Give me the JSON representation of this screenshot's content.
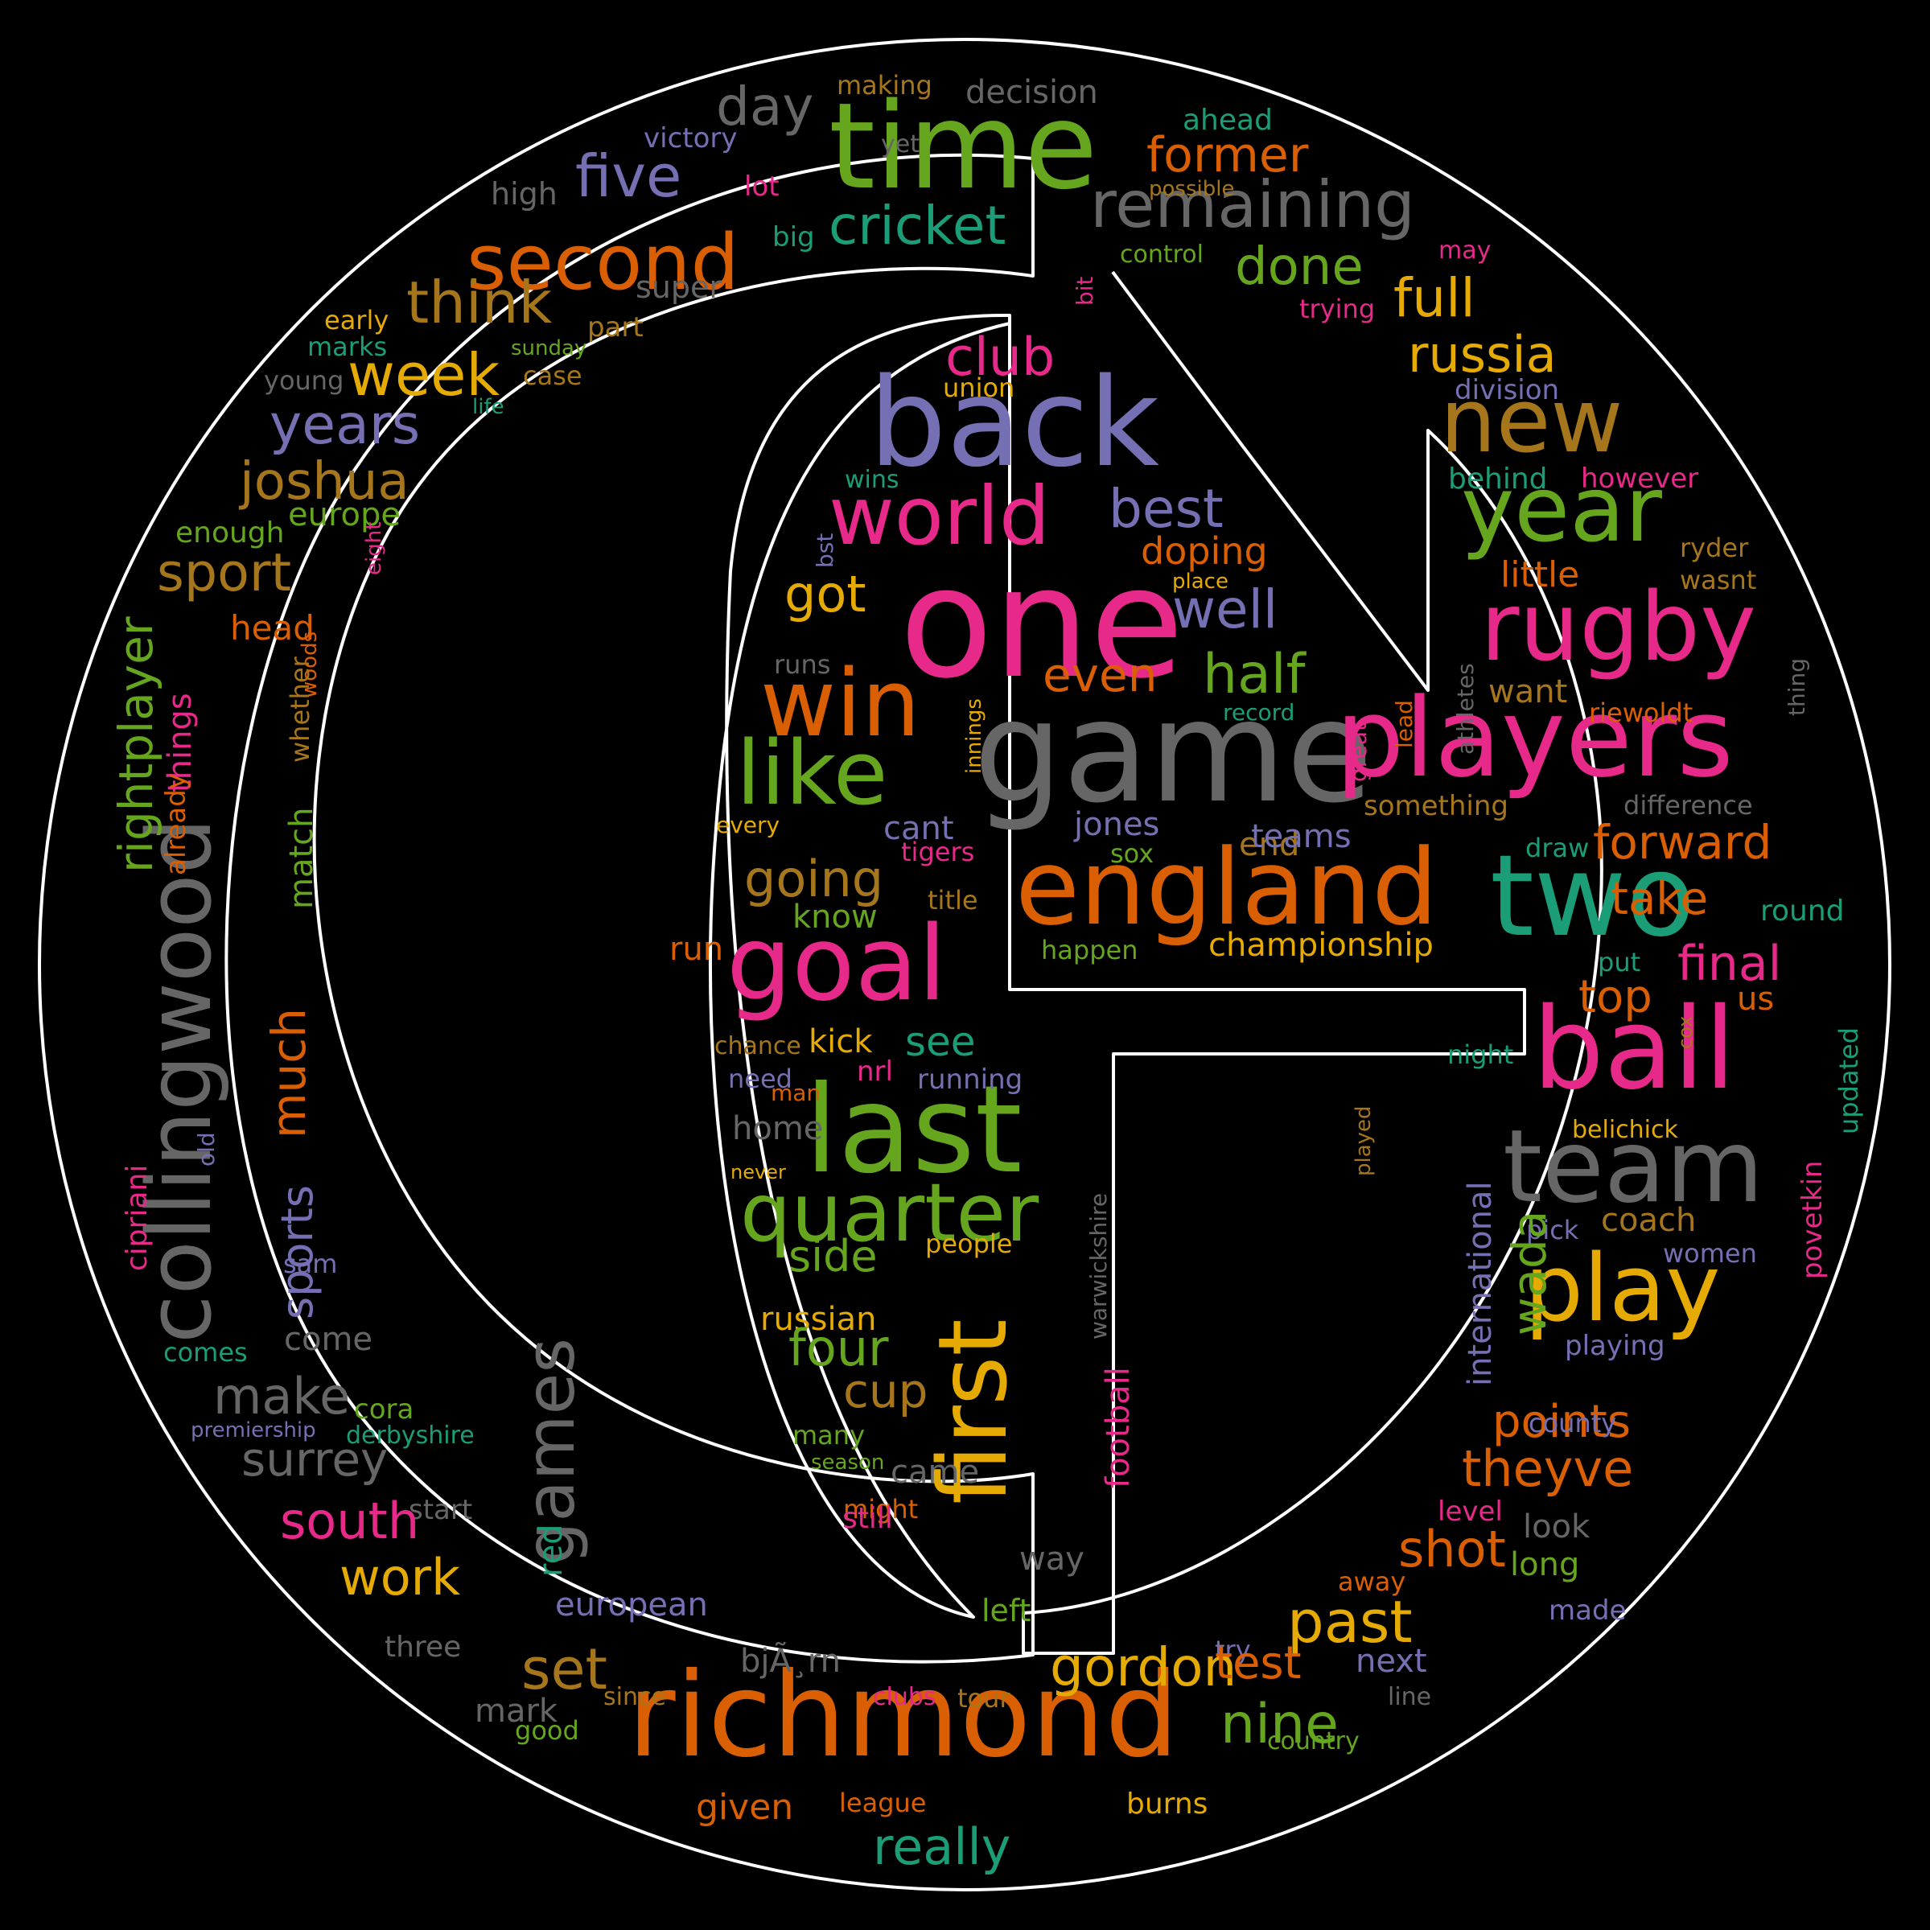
{
  "wordcloud": {
    "colors": {
      "background": "#000000",
      "outline": "#ffffff",
      "green": "#66a61e",
      "pink": "#e7298a",
      "orange": "#d95f02",
      "teal": "#1b9e77",
      "purple": "#7570b3",
      "yellow": "#e6ab02",
      "brown": "#a6761d",
      "grey": "#666666"
    },
    "words": [
      {
        "text": "time",
        "color": "green"
      },
      {
        "text": "back",
        "color": "purple"
      },
      {
        "text": "one",
        "color": "pink"
      },
      {
        "text": "game",
        "color": "grey"
      },
      {
        "text": "players",
        "color": "pink"
      },
      {
        "text": "england",
        "color": "orange"
      },
      {
        "text": "two",
        "color": "teal"
      },
      {
        "text": "richmond",
        "color": "orange"
      },
      {
        "text": "collingwood",
        "color": "grey"
      },
      {
        "text": "last",
        "color": "green"
      },
      {
        "text": "ball",
        "color": "pink"
      },
      {
        "text": "team",
        "color": "grey"
      },
      {
        "text": "goal",
        "color": "pink"
      },
      {
        "text": "win",
        "color": "orange"
      },
      {
        "text": "rugby",
        "color": "pink"
      },
      {
        "text": "year",
        "color": "green"
      },
      {
        "text": "new",
        "color": "brown"
      },
      {
        "text": "first",
        "color": "yellow"
      },
      {
        "text": "play",
        "color": "yellow"
      },
      {
        "text": "quarter",
        "color": "green"
      },
      {
        "text": "world",
        "color": "pink"
      },
      {
        "text": "like",
        "color": "green"
      },
      {
        "text": "second",
        "color": "orange"
      },
      {
        "text": "remaining",
        "color": "grey"
      },
      {
        "text": "five",
        "color": "purple"
      },
      {
        "text": "cricket",
        "color": "teal"
      },
      {
        "text": "former",
        "color": "orange"
      },
      {
        "text": "day",
        "color": "grey"
      },
      {
        "text": "decision",
        "color": "grey"
      },
      {
        "text": "making",
        "color": "brown"
      },
      {
        "text": "victory",
        "color": "purple"
      },
      {
        "text": "ahead",
        "color": "teal"
      },
      {
        "text": "yet",
        "color": "grey"
      },
      {
        "text": "high",
        "color": "grey"
      },
      {
        "text": "lot",
        "color": "pink"
      },
      {
        "text": "possible",
        "color": "brown"
      },
      {
        "text": "big",
        "color": "teal"
      },
      {
        "text": "control",
        "color": "green"
      },
      {
        "text": "may",
        "color": "pink"
      },
      {
        "text": "think",
        "color": "brown"
      },
      {
        "text": "super",
        "color": "grey"
      },
      {
        "text": "done",
        "color": "green"
      },
      {
        "text": "full",
        "color": "yellow"
      },
      {
        "text": "trying",
        "color": "pink"
      },
      {
        "text": "bit",
        "color": "pink"
      },
      {
        "text": "early",
        "color": "yellow"
      },
      {
        "text": "part",
        "color": "brown"
      },
      {
        "text": "marks",
        "color": "teal"
      },
      {
        "text": "week",
        "color": "yellow"
      },
      {
        "text": "sunday",
        "color": "green"
      },
      {
        "text": "young",
        "color": "grey"
      },
      {
        "text": "case",
        "color": "brown"
      },
      {
        "text": "life",
        "color": "teal"
      },
      {
        "text": "club",
        "color": "pink"
      },
      {
        "text": "russia",
        "color": "yellow"
      },
      {
        "text": "union",
        "color": "yellow"
      },
      {
        "text": "division",
        "color": "purple"
      },
      {
        "text": "years",
        "color": "purple"
      },
      {
        "text": "joshua",
        "color": "brown"
      },
      {
        "text": "wins",
        "color": "teal"
      },
      {
        "text": "behind",
        "color": "teal"
      },
      {
        "text": "however",
        "color": "pink"
      },
      {
        "text": "europe",
        "color": "green"
      },
      {
        "text": "enough",
        "color": "green"
      },
      {
        "text": "best",
        "color": "purple"
      },
      {
        "text": "doping",
        "color": "orange"
      },
      {
        "text": "eight",
        "color": "pink"
      },
      {
        "text": "ryder",
        "color": "brown"
      },
      {
        "text": "wasnt",
        "color": "brown"
      },
      {
        "text": "little",
        "color": "orange"
      },
      {
        "text": "place",
        "color": "yellow"
      },
      {
        "text": "bst",
        "color": "purple"
      },
      {
        "text": "sport",
        "color": "brown"
      },
      {
        "text": "got",
        "color": "yellow"
      },
      {
        "text": "well",
        "color": "purple"
      },
      {
        "text": "head",
        "color": "orange"
      },
      {
        "text": "woods",
        "color": "orange"
      },
      {
        "text": "whether",
        "color": "brown"
      },
      {
        "text": "athletes",
        "color": "grey"
      },
      {
        "text": "thing",
        "color": "grey"
      },
      {
        "text": "runs",
        "color": "grey"
      },
      {
        "text": "even",
        "color": "orange"
      },
      {
        "text": "half",
        "color": "green"
      },
      {
        "text": "want",
        "color": "brown"
      },
      {
        "text": "record",
        "color": "teal"
      },
      {
        "text": "riewoldt",
        "color": "orange"
      },
      {
        "text": "innings",
        "color": "yellow"
      },
      {
        "text": "things",
        "color": "pink"
      },
      {
        "text": "already",
        "color": "orange"
      },
      {
        "text": "rightplayer",
        "color": "green"
      },
      {
        "text": "lead",
        "color": "orange"
      },
      {
        "text": "great",
        "color": "pink"
      },
      {
        "text": "something",
        "color": "brown"
      },
      {
        "text": "difference",
        "color": "grey"
      },
      {
        "text": "every",
        "color": "yellow"
      },
      {
        "text": "cant",
        "color": "purple"
      },
      {
        "text": "jones",
        "color": "purple"
      },
      {
        "text": "match",
        "color": "green"
      },
      {
        "text": "end",
        "color": "brown"
      },
      {
        "text": "teams",
        "color": "purple"
      },
      {
        "text": "forward",
        "color": "orange"
      },
      {
        "text": "tigers",
        "color": "pink"
      },
      {
        "text": "sox",
        "color": "green"
      },
      {
        "text": "draw",
        "color": "teal"
      },
      {
        "text": "going",
        "color": "brown"
      },
      {
        "text": "title",
        "color": "brown"
      },
      {
        "text": "take",
        "color": "orange"
      },
      {
        "text": "know",
        "color": "green"
      },
      {
        "text": "round",
        "color": "teal"
      },
      {
        "text": "run",
        "color": "orange"
      },
      {
        "text": "happen",
        "color": "green"
      },
      {
        "text": "championship",
        "color": "yellow"
      },
      {
        "text": "put",
        "color": "teal"
      },
      {
        "text": "final",
        "color": "pink"
      },
      {
        "text": "much",
        "color": "orange"
      },
      {
        "text": "top",
        "color": "orange"
      },
      {
        "text": "us",
        "color": "orange"
      },
      {
        "text": "cox",
        "color": "brown"
      },
      {
        "text": "kick",
        "color": "yellow"
      },
      {
        "text": "see",
        "color": "teal"
      },
      {
        "text": "chance",
        "color": "brown"
      },
      {
        "text": "night",
        "color": "teal"
      },
      {
        "text": "updated",
        "color": "teal"
      },
      {
        "text": "need",
        "color": "purple"
      },
      {
        "text": "nrl",
        "color": "pink"
      },
      {
        "text": "running",
        "color": "purple"
      },
      {
        "text": "man",
        "color": "orange"
      },
      {
        "text": "belichick",
        "color": "yellow"
      },
      {
        "text": "played",
        "color": "brown"
      },
      {
        "text": "home",
        "color": "grey"
      },
      {
        "text": "old",
        "color": "purple"
      },
      {
        "text": "never",
        "color": "yellow"
      },
      {
        "text": "povetkin",
        "color": "pink"
      },
      {
        "text": "cipriani",
        "color": "pink"
      },
      {
        "text": "international",
        "color": "purple"
      },
      {
        "text": "pick",
        "color": "purple"
      },
      {
        "text": "coach",
        "color": "brown"
      },
      {
        "text": "sports",
        "color": "purple"
      },
      {
        "text": "side",
        "color": "green"
      },
      {
        "text": "people",
        "color": "yellow"
      },
      {
        "text": "women",
        "color": "purple"
      },
      {
        "text": "sam",
        "color": "purple"
      },
      {
        "text": "football",
        "color": "pink"
      },
      {
        "text": "warwickshire",
        "color": "grey"
      },
      {
        "text": "wada",
        "color": "green"
      },
      {
        "text": "russian",
        "color": "yellow"
      },
      {
        "text": "come",
        "color": "grey"
      },
      {
        "text": "playing",
        "color": "purple"
      },
      {
        "text": "comes",
        "color": "teal"
      },
      {
        "text": "four",
        "color": "green"
      },
      {
        "text": "make",
        "color": "grey"
      },
      {
        "text": "cup",
        "color": "brown"
      },
      {
        "text": "points",
        "color": "orange"
      },
      {
        "text": "cora",
        "color": "green"
      },
      {
        "text": "many",
        "color": "green"
      },
      {
        "text": "county",
        "color": "purple"
      },
      {
        "text": "premiership",
        "color": "purple"
      },
      {
        "text": "derbyshire",
        "color": "teal"
      },
      {
        "text": "theyve",
        "color": "orange"
      },
      {
        "text": "surrey",
        "color": "grey"
      },
      {
        "text": "season",
        "color": "green"
      },
      {
        "text": "came",
        "color": "grey"
      },
      {
        "text": "start",
        "color": "grey"
      },
      {
        "text": "might",
        "color": "orange"
      },
      {
        "text": "level",
        "color": "pink"
      },
      {
        "text": "south",
        "color": "pink"
      },
      {
        "text": "look",
        "color": "grey"
      },
      {
        "text": "games",
        "color": "grey"
      },
      {
        "text": "still",
        "color": "pink"
      },
      {
        "text": "shot",
        "color": "orange"
      },
      {
        "text": "way",
        "color": "grey"
      },
      {
        "text": "long",
        "color": "green"
      },
      {
        "text": "work",
        "color": "yellow"
      },
      {
        "text": "red",
        "color": "teal"
      },
      {
        "text": "away",
        "color": "orange"
      },
      {
        "text": "european",
        "color": "purple"
      },
      {
        "text": "left",
        "color": "green"
      },
      {
        "text": "made",
        "color": "purple"
      },
      {
        "text": "past",
        "color": "yellow"
      },
      {
        "text": "three",
        "color": "grey"
      },
      {
        "text": "try",
        "color": "purple"
      },
      {
        "text": "set",
        "color": "brown"
      },
      {
        "text": "gordon",
        "color": "yellow"
      },
      {
        "text": "test",
        "color": "orange"
      },
      {
        "text": "next",
        "color": "purple"
      },
      {
        "text": "bjÃ¸rn",
        "color": "grey"
      },
      {
        "text": "mark",
        "color": "grey"
      },
      {
        "text": "since",
        "color": "brown"
      },
      {
        "text": "clubs",
        "color": "pink"
      },
      {
        "text": "tour",
        "color": "brown"
      },
      {
        "text": "line",
        "color": "grey"
      },
      {
        "text": "nine",
        "color": "green"
      },
      {
        "text": "good",
        "color": "green"
      },
      {
        "text": "country",
        "color": "green"
      },
      {
        "text": "given",
        "color": "orange"
      },
      {
        "text": "league",
        "color": "orange"
      },
      {
        "text": "burns",
        "color": "yellow"
      },
      {
        "text": "really",
        "color": "teal"
      },
      {
        "text": "another",
        "color": "orange"
      }
    ]
  }
}
